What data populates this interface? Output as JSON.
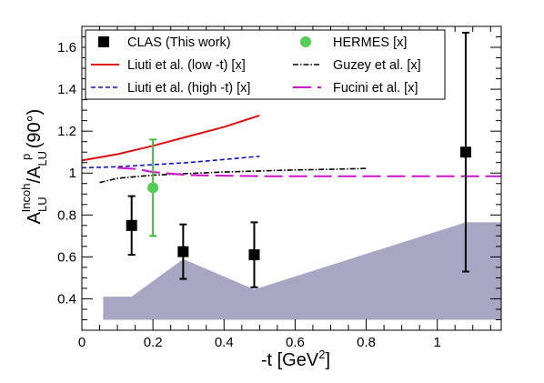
{
  "chart_data": {
    "type": "scatter",
    "xlim": [
      0,
      1.18
    ],
    "ylim": [
      0.25,
      1.7
    ],
    "x_ticks": [
      {
        "value": 0,
        "label": "0"
      },
      {
        "value": 0.2,
        "label": "0.2"
      },
      {
        "value": 0.4,
        "label": "0.4"
      },
      {
        "value": 0.6,
        "label": "0.6"
      },
      {
        "value": 0.8,
        "label": "0.8"
      },
      {
        "value": 1.0,
        "label": "1"
      }
    ],
    "y_ticks": [
      {
        "value": 0.4,
        "label": "0.4"
      },
      {
        "value": 0.6,
        "label": "0.6"
      },
      {
        "value": 0.8,
        "label": "0.8"
      },
      {
        "value": 1.0,
        "label": "1"
      },
      {
        "value": 1.2,
        "label": "1.2"
      },
      {
        "value": 1.4,
        "label": "1.4"
      },
      {
        "value": 1.6,
        "label": "1.6"
      }
    ],
    "xlabel": "-t [GeV²]",
    "ylabel": "A_LU^Incoh/A_LU^p (90°)",
    "colors": {
      "clas": "#000000",
      "hermes": "#55cc55",
      "hermes_err": "#44bb44",
      "liuti_low": "#dd1111",
      "liuti_high": "#1111bb",
      "guzey": "#000000",
      "fucini": "#cc11cc",
      "systematic": "#a9a6c4"
    },
    "series": [
      {
        "name": "CLAS (This work)",
        "kind": "points",
        "marker": "square",
        "color": "#000000",
        "points": [
          {
            "x": 0.14,
            "y": 0.75,
            "err": 0.14
          },
          {
            "x": 0.285,
            "y": 0.625,
            "err": 0.13
          },
          {
            "x": 0.485,
            "y": 0.61,
            "err": 0.155
          },
          {
            "x": 1.08,
            "y": 1.1,
            "err": 0.57
          }
        ]
      },
      {
        "name": "HERMES [x]",
        "kind": "points",
        "marker": "circle",
        "color": "#55cc55",
        "points": [
          {
            "x": 0.2,
            "y": 0.93,
            "err": 0.23
          }
        ]
      },
      {
        "name": "Liuti et al. (low -t) [x]",
        "kind": "line",
        "style": "solid",
        "color": "#dd1111",
        "points": [
          [
            0,
            1.06
          ],
          [
            0.1,
            1.09
          ],
          [
            0.2,
            1.13
          ],
          [
            0.3,
            1.175
          ],
          [
            0.4,
            1.22
          ],
          [
            0.5,
            1.275
          ]
        ]
      },
      {
        "name": "Liuti et al. (high -t) [x]",
        "kind": "line",
        "style": "dashed",
        "color": "#1111bb",
        "points": [
          [
            0,
            1.025
          ],
          [
            0.1,
            1.03
          ],
          [
            0.2,
            1.04
          ],
          [
            0.3,
            1.05
          ],
          [
            0.4,
            1.065
          ],
          [
            0.5,
            1.08
          ]
        ]
      },
      {
        "name": "Guzey et al. [x]",
        "kind": "line",
        "style": "dashdot",
        "color": "#000000",
        "points": [
          [
            0.05,
            0.955
          ],
          [
            0.1,
            0.975
          ],
          [
            0.2,
            0.99
          ],
          [
            0.3,
            0.998
          ],
          [
            0.4,
            1.005
          ],
          [
            0.5,
            1.01
          ],
          [
            0.6,
            1.015
          ],
          [
            0.7,
            1.018
          ],
          [
            0.8,
            1.022
          ]
        ]
      },
      {
        "name": "Fucini et al. [x]",
        "kind": "line",
        "style": "longdash",
        "color": "#cc11cc",
        "points": [
          [
            0.1,
            1.025
          ],
          [
            0.15,
            1.02
          ],
          [
            0.2,
            1.005
          ],
          [
            0.3,
            0.99
          ],
          [
            0.5,
            0.985
          ],
          [
            0.8,
            0.985
          ],
          [
            1.18,
            0.985
          ]
        ]
      }
    ],
    "systematic_band": {
      "color": "#a9a6c4",
      "baseline": 0.3,
      "points": [
        [
          0.06,
          0.41
        ],
        [
          0.14,
          0.41
        ],
        [
          0.285,
          0.59
        ],
        [
          0.485,
          0.445
        ],
        [
          1.08,
          0.765
        ],
        [
          1.18,
          0.765
        ]
      ]
    },
    "legend": {
      "placement": "top",
      "columns": [
        [
          {
            "label": "CLAS (This work)",
            "series": 0
          },
          {
            "label": "Liuti et al. (low -t) [x]",
            "series": 2
          },
          {
            "label": "Liuti et al. (high -t) [x]",
            "series": 3
          }
        ],
        [
          {
            "label": "HERMES [x]",
            "series": 1
          },
          {
            "label": "Guzey et al. [x]",
            "series": 4
          },
          {
            "label": "Fucini et al. [x]",
            "series": 5
          }
        ]
      ]
    }
  }
}
